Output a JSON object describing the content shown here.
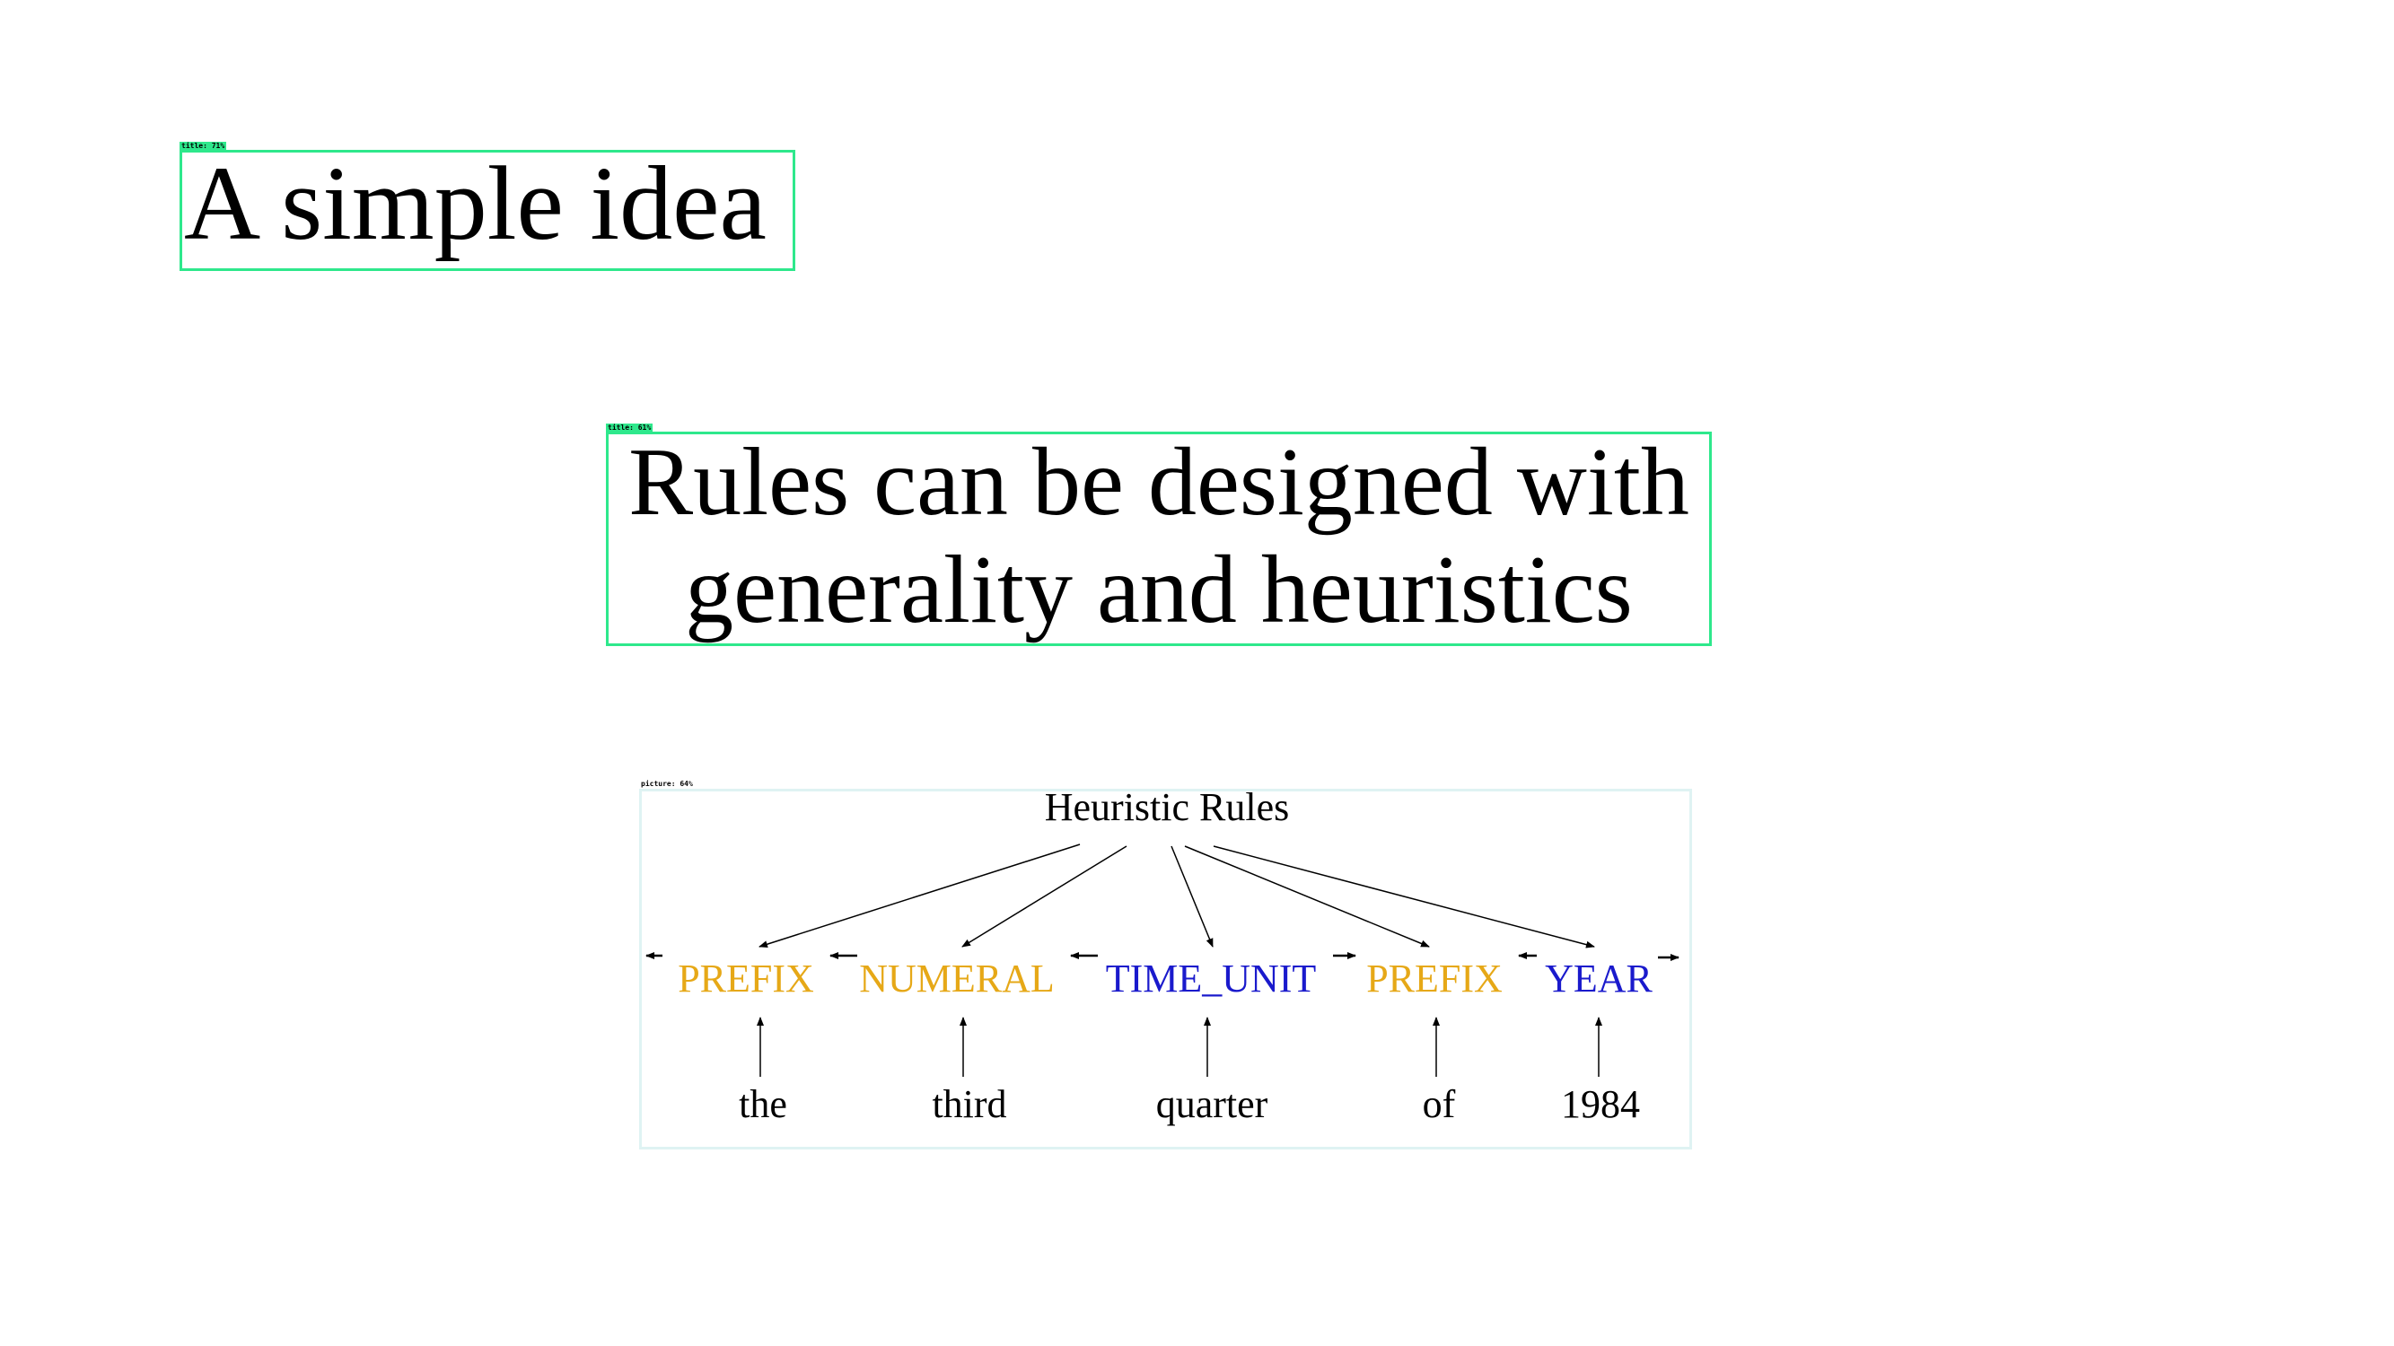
{
  "colors": {
    "title_box": "#2ee88c",
    "picture_box": "#dff3f3",
    "category_a": "#e6a817",
    "category_b": "#1a1acc",
    "text": "#000000"
  },
  "detections": [
    {
      "label": "title: 71%"
    },
    {
      "label": "title: 61%"
    },
    {
      "label": "picture: 64%"
    }
  ],
  "titles": [
    {
      "text": "A simple idea"
    },
    {
      "lines": [
        "Rules can be designed with",
        "generality and heuristics"
      ]
    }
  ],
  "diagram": {
    "root": "Heuristic Rules",
    "tags": [
      {
        "label": "PREFIX",
        "color": "#e6a817"
      },
      {
        "label": "NUMERAL",
        "color": "#e6a817"
      },
      {
        "label": "TIME_UNIT",
        "color": "#1a1acc"
      },
      {
        "label": "PREFIX",
        "color": "#e6a817"
      },
      {
        "label": "YEAR",
        "color": "#1a1acc"
      }
    ],
    "words": [
      "the",
      "third",
      "quarter",
      "of",
      "1984"
    ]
  }
}
